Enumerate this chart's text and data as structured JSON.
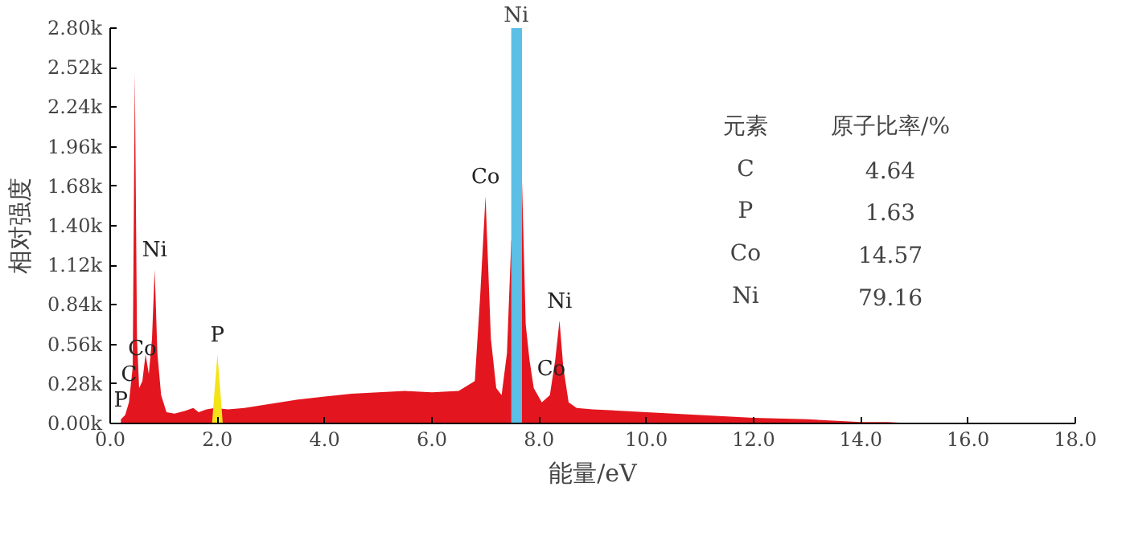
{
  "chart_data": {
    "type": "area",
    "xlabel": "能量/eV",
    "ylabel": "相对强度",
    "xlim": [
      0,
      18
    ],
    "ylim": [
      0,
      2800
    ],
    "xticks": [
      {
        "value": 0,
        "label": "0.0"
      },
      {
        "value": 2,
        "label": "2.0"
      },
      {
        "value": 4,
        "label": "4.0"
      },
      {
        "value": 6,
        "label": "6.0"
      },
      {
        "value": 8,
        "label": "8.0"
      },
      {
        "value": 10,
        "label": "10.0"
      },
      {
        "value": 12,
        "label": "12.0"
      },
      {
        "value": 14,
        "label": "14.0"
      },
      {
        "value": 16,
        "label": "16.0"
      },
      {
        "value": 18,
        "label": "18.0"
      }
    ],
    "yticks": [
      {
        "value": 0,
        "label": "0.00k"
      },
      {
        "value": 280,
        "label": "0.28k"
      },
      {
        "value": 560,
        "label": "0.56k"
      },
      {
        "value": 840,
        "label": "0.84k"
      },
      {
        "value": 1120,
        "label": "1.12k"
      },
      {
        "value": 1400,
        "label": "1.40k"
      },
      {
        "value": 1680,
        "label": "1.68k"
      },
      {
        "value": 1960,
        "label": "1.96k"
      },
      {
        "value": 2240,
        "label": "2.24k"
      },
      {
        "value": 2520,
        "label": "2.52k"
      },
      {
        "value": 2800,
        "label": "2.80k"
      }
    ],
    "series": [
      {
        "color": "#e3161f",
        "x": [
          0.2,
          0.28,
          0.35,
          0.42,
          0.46,
          0.5,
          0.54,
          0.6,
          0.66,
          0.72,
          0.78,
          0.83,
          0.88,
          0.95,
          1.05,
          1.2,
          1.4,
          1.55,
          1.65,
          1.8,
          1.95,
          2.2,
          2.5,
          3.0,
          3.5,
          4.0,
          4.5,
          5.0,
          5.5,
          6.0,
          6.5,
          6.8,
          6.9,
          7.0,
          7.1,
          7.2,
          7.3,
          7.4,
          7.48,
          7.68,
          7.75,
          7.82,
          7.9,
          8.05,
          8.2,
          8.3,
          8.38,
          8.45,
          8.55,
          8.7,
          9.0,
          10.0,
          11.0,
          12.0,
          13.0,
          14.0,
          14.5,
          15.0
        ],
        "values": [
          30,
          60,
          150,
          400,
          2480,
          600,
          250,
          300,
          490,
          350,
          600,
          1090,
          500,
          200,
          80,
          70,
          90,
          110,
          80,
          100,
          110,
          100,
          110,
          140,
          170,
          190,
          210,
          220,
          230,
          220,
          230,
          300,
          900,
          1610,
          600,
          250,
          200,
          500,
          1290,
          1720,
          700,
          450,
          250,
          150,
          200,
          450,
          730,
          400,
          150,
          110,
          100,
          80,
          60,
          40,
          30,
          10,
          10,
          0
        ]
      },
      {
        "color": "#f5e31a",
        "x": [
          1.9,
          1.95,
          2.0,
          2.05,
          2.1
        ],
        "values": [
          0,
          250,
          490,
          250,
          0
        ]
      }
    ],
    "bands": [
      {
        "axis": "x",
        "from": 7.48,
        "to": 7.68,
        "color": "#5bbfe6"
      }
    ],
    "annotations": [
      {
        "text": "P",
        "x": 0.2,
        "y": 30
      },
      {
        "text": "C",
        "x": 0.35,
        "y": 150
      },
      {
        "text": "Co",
        "x": 0.6,
        "y": 300
      },
      {
        "text": "Ni",
        "x": 0.83,
        "y": 1090
      },
      {
        "text": "P",
        "x": 2.0,
        "y": 490
      },
      {
        "text": "Co",
        "x": 7.0,
        "y": 1610
      },
      {
        "text": "Ni",
        "x": 7.58,
        "y": 2800
      },
      {
        "text": "Co",
        "x": 7.9,
        "y": 250
      },
      {
        "text": "Ni",
        "x": 8.38,
        "y": 730
      },
      "元素",
      "原子比率/%",
      "C",
      "4.64",
      "P",
      "1.63",
      "Co",
      "14.57",
      "Ni",
      "79.16"
    ]
  }
}
